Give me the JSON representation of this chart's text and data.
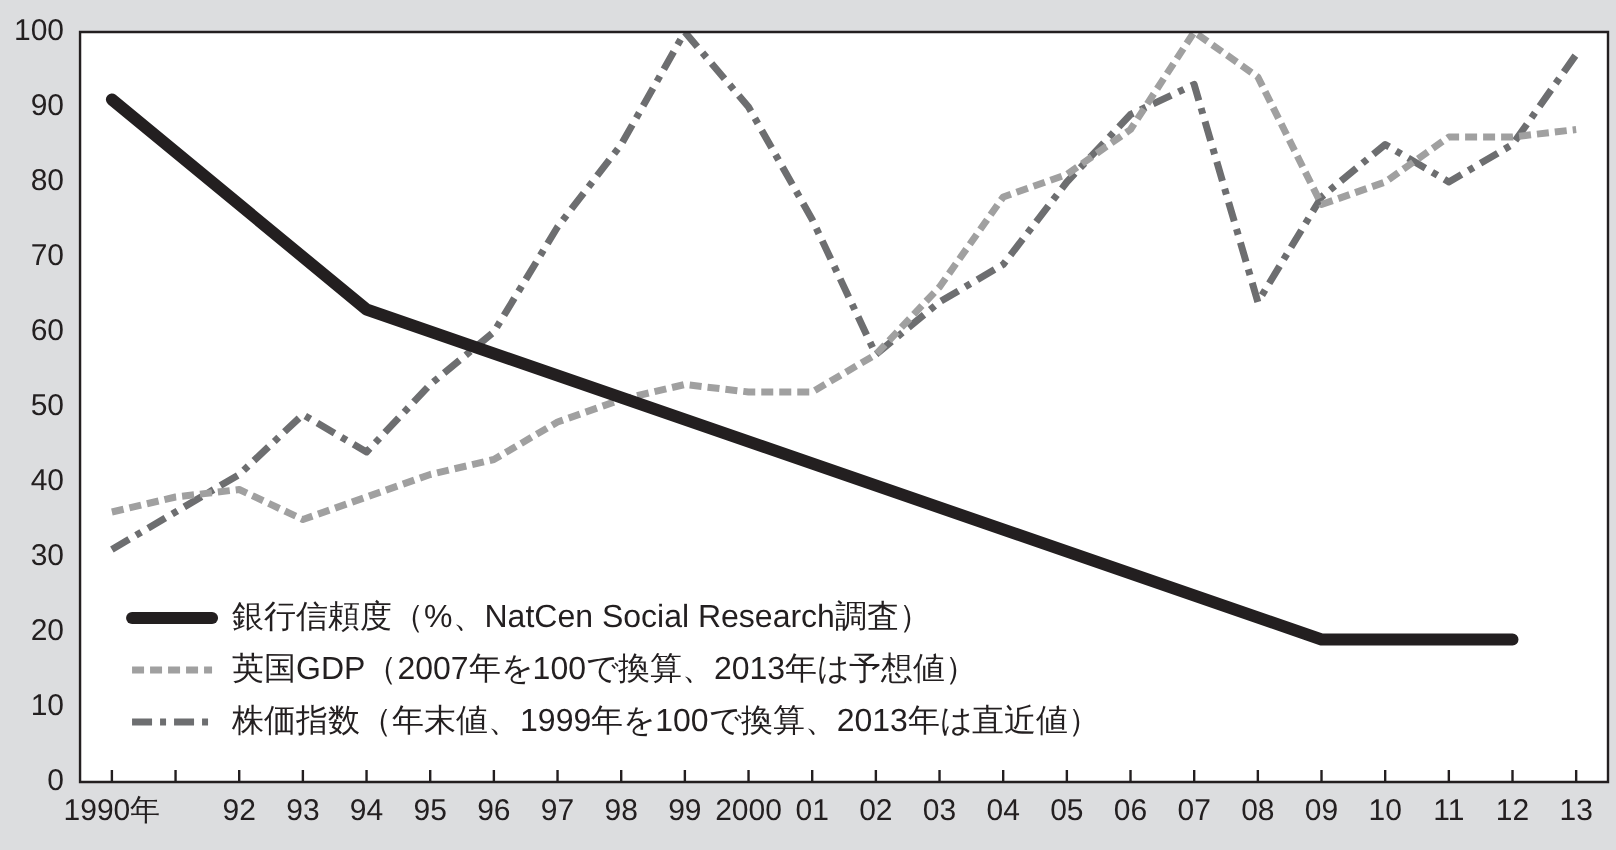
{
  "chart_data": {
    "type": "line",
    "categories": [
      "1990年",
      null,
      "92",
      "93",
      "94",
      "95",
      "96",
      "97",
      "98",
      "99",
      "2000",
      "01",
      "02",
      "03",
      "04",
      "05",
      "06",
      "07",
      "08",
      "09",
      "10",
      "11",
      "12",
      "13"
    ],
    "series": [
      {
        "name": "銀行信頼度（%、NatCen Social Research調査）",
        "color": "#231f20",
        "line_style": "solid",
        "values": [
          91,
          null,
          null,
          null,
          63,
          null,
          null,
          null,
          null,
          null,
          null,
          null,
          null,
          null,
          null,
          null,
          null,
          null,
          null,
          19,
          null,
          null,
          19,
          null
        ]
      },
      {
        "name": "英国GDP（2007年を100で換算、2013年は予想値）",
        "color": "#a0a0a0",
        "line_style": "dashed",
        "values": [
          36,
          38,
          39,
          35,
          38,
          41,
          43,
          48,
          51,
          53,
          52,
          52,
          57,
          66,
          78,
          81,
          87,
          100,
          94,
          77,
          80,
          86,
          86,
          87
        ]
      },
      {
        "name": "株価指数（年末値、1999年を100で換算、2013年は直近値）",
        "color": "#6d6e70",
        "line_style": "dashdot",
        "values": [
          31,
          36,
          41,
          49,
          44,
          53,
          60,
          74,
          85,
          100,
          90,
          75,
          57,
          64,
          69,
          80,
          89,
          93,
          64,
          78,
          85,
          80,
          85,
          97
        ]
      }
    ],
    "ylim": [
      0,
      100
    ],
    "yticks": [
      0,
      10,
      20,
      30,
      40,
      50,
      60,
      70,
      80,
      90,
      100
    ],
    "marker": "none",
    "legend": "bottom left"
  }
}
